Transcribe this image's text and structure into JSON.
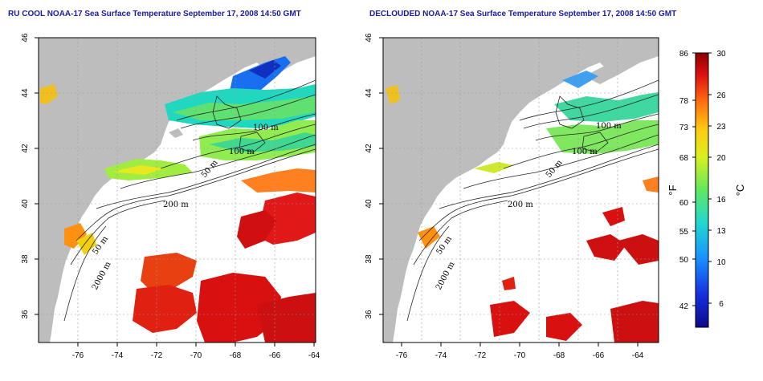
{
  "panels": [
    {
      "title": "RU COOL NOAA-17 Sea Surface Temperature September 17, 2008 14:50 GMT",
      "lon_ticks": [
        "-76",
        "-74",
        "-72",
        "-70",
        "-68",
        "-66",
        "-64"
      ],
      "lat_ticks": [
        "46",
        "44",
        "42",
        "40",
        "38",
        "36"
      ],
      "contour_labels": [
        "100 m",
        "100 m",
        "50 m",
        "200 m",
        "50 m",
        "2000 m"
      ]
    },
    {
      "title": "DECLOUDED NOAA-17 Sea Surface Temperature September 17, 2008 14:50 GMT",
      "lon_ticks": [
        "-76",
        "-74",
        "-72",
        "-70",
        "-68",
        "-66",
        "-64"
      ],
      "lat_ticks": [
        "46",
        "44",
        "42",
        "40",
        "38",
        "36"
      ],
      "contour_labels": [
        "100 m",
        "100 m",
        "50 m",
        "200 m",
        "50 m",
        "2000 m"
      ]
    }
  ],
  "colorbar": {
    "fahrenheit_ticks": [
      "86",
      "78",
      "73",
      "68",
      "60",
      "55",
      "50",
      "42"
    ],
    "celsius_ticks": [
      "30",
      "26",
      "23",
      "20",
      "16",
      "13",
      "10",
      "6"
    ],
    "fahrenheit_unit": "°F",
    "celsius_unit": "°C",
    "range_c": [
      4,
      30
    ]
  },
  "colors": {
    "land": "#bdbdbd",
    "ocean": "#ffffff",
    "title": "#1a1aa0",
    "warm": "#cc1111",
    "cold": "#1030c0"
  }
}
